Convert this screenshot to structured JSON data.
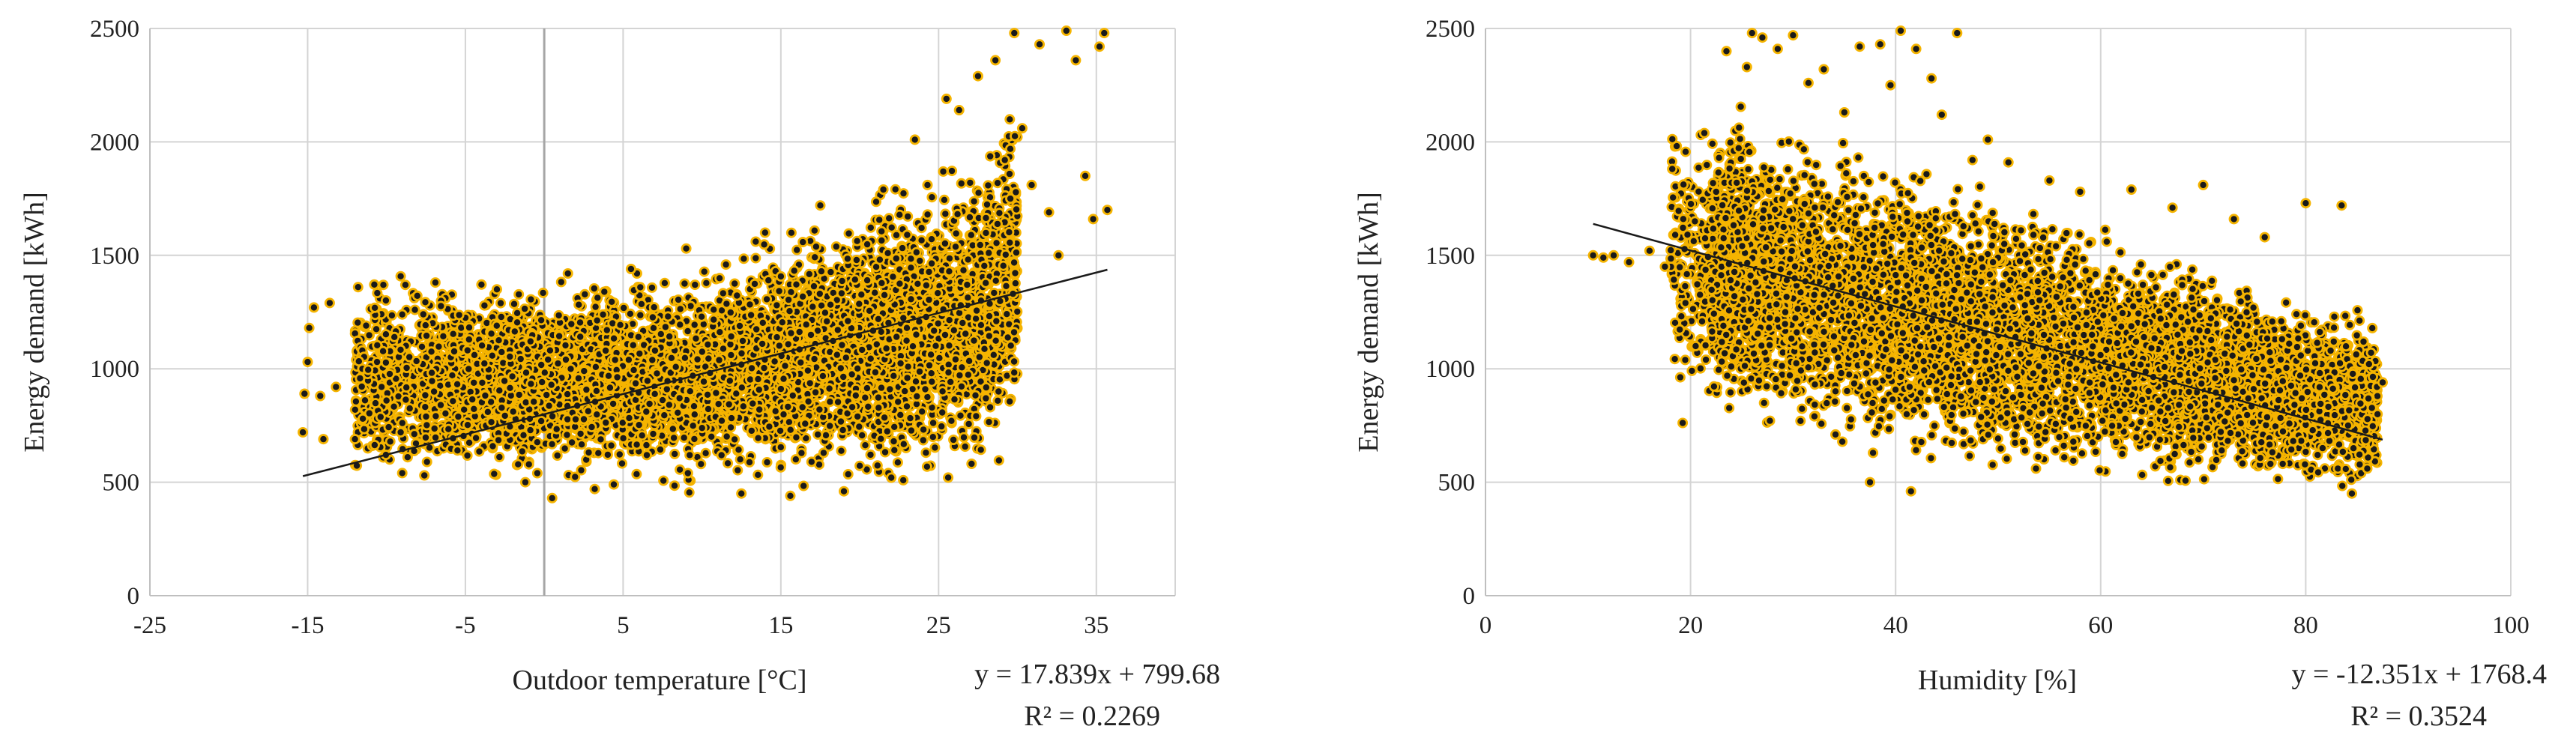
{
  "chart_data": [
    {
      "type": "scatter",
      "xlabel": "Outdoor temperature [°C]",
      "ylabel": "Energy demand [kWh]",
      "xlim": [
        -25,
        40
      ],
      "ylim": [
        0,
        2500
      ],
      "xticks": [
        -25,
        -15,
        -5,
        5,
        15,
        25,
        35
      ],
      "yticks": [
        0,
        500,
        1000,
        1500,
        2000,
        2500
      ],
      "grid": true,
      "marker_fill": "#1a1a1a",
      "marker_edge": "#f5b400",
      "trendline_color": "#1a1a1a",
      "trendline": {
        "slope": 17.839,
        "intercept": 799.68,
        "x_range": [
          -15.3,
          35.7
        ],
        "r2": 0.2269
      },
      "equation_text": "y = 17.839x + 799.68",
      "r2_text": "R² = 0.2269",
      "series": [
        {
          "points": [
            [
              -15.3,
              720
            ],
            [
              -15.2,
              890
            ],
            [
              -15.0,
              1030
            ],
            [
              -14.9,
              1180
            ],
            [
              -14.6,
              1270
            ],
            [
              -14.2,
              880
            ],
            [
              -14.0,
              690
            ],
            [
              -13.6,
              1290
            ],
            [
              -13.2,
              920
            ],
            [
              -12.0,
              690
            ],
            [
              -11.5,
              780
            ],
            [
              -11.8,
              1360
            ],
            [
              -10.6,
              1030
            ],
            [
              -10.2,
              1370
            ],
            [
              -10.0,
              860
            ],
            [
              -9.5,
              1140
            ],
            [
              -9.1,
              720
            ],
            [
              -8.8,
              1370
            ],
            [
              -8.2,
              1260
            ],
            [
              -7.6,
              530
            ],
            [
              -6.9,
              1380
            ],
            [
              -5.5,
              640
            ],
            [
              -3.0,
              1350
            ],
            [
              -1.2,
              500
            ],
            [
              0.5,
              430
            ],
            [
              1.5,
              1420
            ],
            [
              3.2,
              470
            ],
            [
              5.5,
              1440
            ],
            [
              9.0,
              1530
            ],
            [
              12.5,
              450
            ],
            [
              14.0,
              1600
            ],
            [
              15.6,
              440
            ],
            [
              17.5,
              1720
            ],
            [
              19.0,
              460
            ],
            [
              21.5,
              1790
            ],
            [
              22.0,
              520
            ],
            [
              23.5,
              2010
            ],
            [
              24.3,
              1680
            ],
            [
              25.5,
              2190
            ],
            [
              26.3,
              2140
            ],
            [
              27.0,
              1820
            ],
            [
              27.5,
              2290
            ],
            [
              28.0,
              870
            ],
            [
              28.6,
              2360
            ],
            [
              29.2,
              1920
            ],
            [
              29.8,
              2480
            ],
            [
              30.3,
              2060
            ],
            [
              30.9,
              1810
            ],
            [
              31.4,
              2430
            ],
            [
              32.0,
              1690
            ],
            [
              32.6,
              1500
            ],
            [
              33.1,
              2490
            ],
            [
              33.7,
              2360
            ],
            [
              34.3,
              1850
            ],
            [
              34.8,
              1660
            ],
            [
              35.2,
              2420
            ],
            [
              35.5,
              2480
            ],
            [
              35.7,
              1700
            ],
            [
              28.8,
              900
            ]
          ],
          "cloud_samples": 6200
        }
      ]
    },
    {
      "type": "scatter",
      "xlabel": "Humidity [%]",
      "ylabel": "Energy demand [kWh]",
      "xlim": [
        0,
        100
      ],
      "ylim": [
        0,
        2500
      ],
      "xticks": [
        0,
        20,
        40,
        60,
        80,
        100
      ],
      "yticks": [
        0,
        500,
        1000,
        1500,
        2000,
        2500
      ],
      "grid": true,
      "marker_fill": "#1a1a1a",
      "marker_edge": "#f5b400",
      "trendline_color": "#1a1a1a",
      "trendline": {
        "slope": -12.351,
        "intercept": 1768.4,
        "x_range": [
          10.5,
          87.5
        ],
        "r2": 0.3524
      },
      "equation_text": "y = -12.351x + 1768.4",
      "r2_text": "R² = 0.3524",
      "series": [
        {
          "points": [
            [
              10.5,
              1500
            ],
            [
              11.5,
              1490
            ],
            [
              12.5,
              1500
            ],
            [
              14.0,
              1470
            ],
            [
              16.0,
              1520
            ],
            [
              17.5,
              1450
            ],
            [
              18.5,
              1590
            ],
            [
              19.5,
              1290
            ],
            [
              20.5,
              1100
            ],
            [
              21.5,
              1040
            ],
            [
              22.5,
              1780
            ],
            [
              23.5,
              2400
            ],
            [
              24.5,
              1820
            ],
            [
              25.5,
              2330
            ],
            [
              26.0,
              2480
            ],
            [
              27.0,
              2460
            ],
            [
              28.5,
              2410
            ],
            [
              30.0,
              2470
            ],
            [
              31.5,
              2260
            ],
            [
              33.0,
              2320
            ],
            [
              35.0,
              2130
            ],
            [
              36.5,
              2420
            ],
            [
              37.5,
              500
            ],
            [
              38.5,
              2430
            ],
            [
              39.5,
              2250
            ],
            [
              40.5,
              2490
            ],
            [
              41.5,
              460
            ],
            [
              42.0,
              2410
            ],
            [
              43.5,
              2280
            ],
            [
              44.5,
              2120
            ],
            [
              46.0,
              2480
            ],
            [
              47.5,
              1920
            ],
            [
              49.0,
              2010
            ],
            [
              51.0,
              1910
            ],
            [
              55.0,
              1830
            ],
            [
              58.0,
              1780
            ],
            [
              63.0,
              1790
            ],
            [
              67.0,
              1710
            ],
            [
              70.0,
              1810
            ],
            [
              73.0,
              1660
            ],
            [
              76.0,
              1580
            ],
            [
              80.0,
              1730
            ],
            [
              83.5,
              1720
            ],
            [
              84.5,
              450
            ],
            [
              86.0,
              560
            ],
            [
              87.5,
              940
            ],
            [
              87.0,
              800
            ]
          ],
          "cloud_samples": 6800
        }
      ]
    }
  ]
}
